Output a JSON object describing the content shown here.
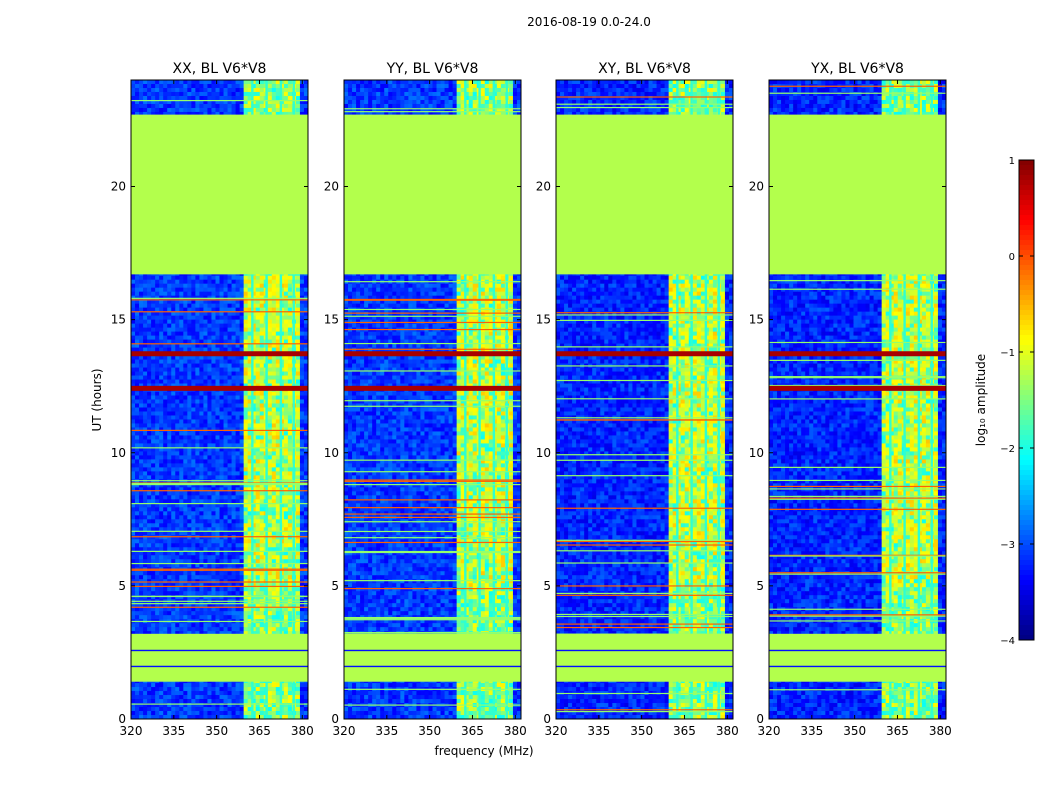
{
  "chart_data": {
    "type": "heatmap",
    "title": "2016-08-19 0.0-24.0",
    "xlabel": "frequency (MHz)",
    "ylabel": "UT (hours)",
    "xlim": [
      320,
      382
    ],
    "ylim": [
      0,
      24
    ],
    "x_ticks": [
      320,
      335,
      350,
      365,
      380
    ],
    "y_ticks": [
      0,
      5,
      10,
      15,
      20
    ],
    "colorbar": {
      "label": "log₁₀ amplitude",
      "range": [
        -4,
        1
      ],
      "ticks": [
        1,
        0,
        -1,
        -2,
        -3,
        -4
      ],
      "tick_labels": [
        "1",
        "0",
        "−1",
        "−2",
        "−3",
        "−4"
      ],
      "colormap": "jet",
      "colors": [
        "#00008f",
        "#0000ff",
        "#0080ff",
        "#00ffff",
        "#80ff80",
        "#ffff00",
        "#ff8000",
        "#ff0000",
        "#800000"
      ]
    },
    "blank_ranges_hours": [
      [
        16.7,
        22.7
      ],
      [
        1.4,
        3.2
      ]
    ],
    "blank_value": -1.25,
    "rfi_band_mhz": [
      359.5,
      378.5
    ],
    "panels": [
      {
        "title": "XX, BL V6*V8",
        "baseline_level": -3.1,
        "strong_rfi_hours": [
          12.4,
          13.7
        ]
      },
      {
        "title": "YY, BL V6*V8",
        "baseline_level": -3.1,
        "strong_rfi_hours": [
          12.4,
          13.7
        ]
      },
      {
        "title": "XY, BL V6*V8",
        "baseline_level": -3.2,
        "strong_rfi_hours": [
          13.7
        ]
      },
      {
        "title": "YX, BL V6*V8",
        "baseline_level": -3.2,
        "strong_rfi_hours": [
          12.4,
          13.7
        ]
      }
    ]
  }
}
